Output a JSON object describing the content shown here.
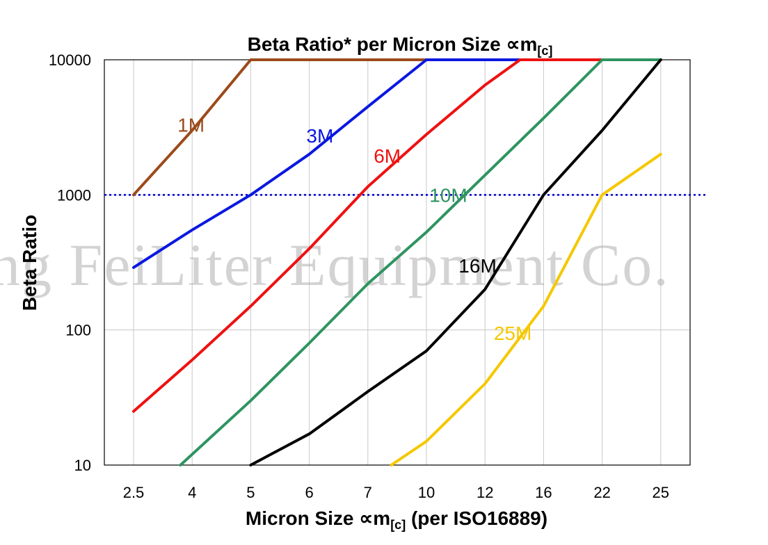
{
  "chart_data": {
    "type": "line",
    "title": "Beta Ratio* per Micron Size ∝m",
    "title_subscript": "[c]",
    "xlabel": "Micron Size ∝m",
    "xlabel_subscript": "[c]",
    "xlabel_suffix": " (per ISO16889)",
    "ylabel": "Beta Ratio",
    "y_scale": "log",
    "ylim": [
      10,
      10000
    ],
    "y_ticks": [
      "10",
      "100",
      "1000",
      "10000"
    ],
    "categories": [
      "2.5",
      "4",
      "5",
      "6",
      "7",
      "10",
      "12",
      "16",
      "22",
      "25"
    ],
    "grid": true,
    "reference_line": {
      "value": 1000,
      "color": "#0000cc",
      "style": "dotted"
    },
    "watermark": "ng FeiLiter Equipment Co.",
    "series": [
      {
        "name": "1M",
        "color": "#9c4a1a",
        "points": [
          [
            0,
            1000
          ],
          [
            1,
            3000
          ],
          [
            2,
            10000
          ],
          [
            9,
            10000
          ]
        ]
      },
      {
        "name": "3M",
        "color": "#0a18e0",
        "points": [
          [
            0,
            290
          ],
          [
            1,
            550
          ],
          [
            2,
            1000
          ],
          [
            3,
            2000
          ],
          [
            4,
            4500
          ],
          [
            5,
            10000
          ],
          [
            9,
            10000
          ]
        ]
      },
      {
        "name": "6M",
        "color": "#ee1111",
        "points": [
          [
            0,
            25
          ],
          [
            1,
            60
          ],
          [
            2,
            150
          ],
          [
            3,
            400
          ],
          [
            4,
            1150
          ],
          [
            5,
            2800
          ],
          [
            6,
            6500
          ],
          [
            6.6,
            10000
          ],
          [
            9,
            10000
          ]
        ]
      },
      {
        "name": "10M",
        "color": "#2e9460",
        "points": [
          [
            0.8,
            10
          ],
          [
            2,
            30
          ],
          [
            3,
            80
          ],
          [
            4,
            220
          ],
          [
            5,
            530
          ],
          [
            6,
            1400
          ],
          [
            7,
            3700
          ],
          [
            8,
            10000
          ],
          [
            9,
            10000
          ]
        ]
      },
      {
        "name": "16M",
        "color": "#000000",
        "points": [
          [
            2,
            10
          ],
          [
            3,
            17
          ],
          [
            4,
            35
          ],
          [
            5,
            70
          ],
          [
            6,
            200
          ],
          [
            7,
            1000
          ],
          [
            8,
            3000
          ],
          [
            9,
            10000
          ]
        ]
      },
      {
        "name": "25M",
        "color": "#f5c800",
        "points": [
          [
            4.4,
            10
          ],
          [
            5,
            15
          ],
          [
            6,
            40
          ],
          [
            7,
            150
          ],
          [
            8,
            1000
          ],
          [
            9,
            2000
          ]
        ]
      }
    ]
  }
}
